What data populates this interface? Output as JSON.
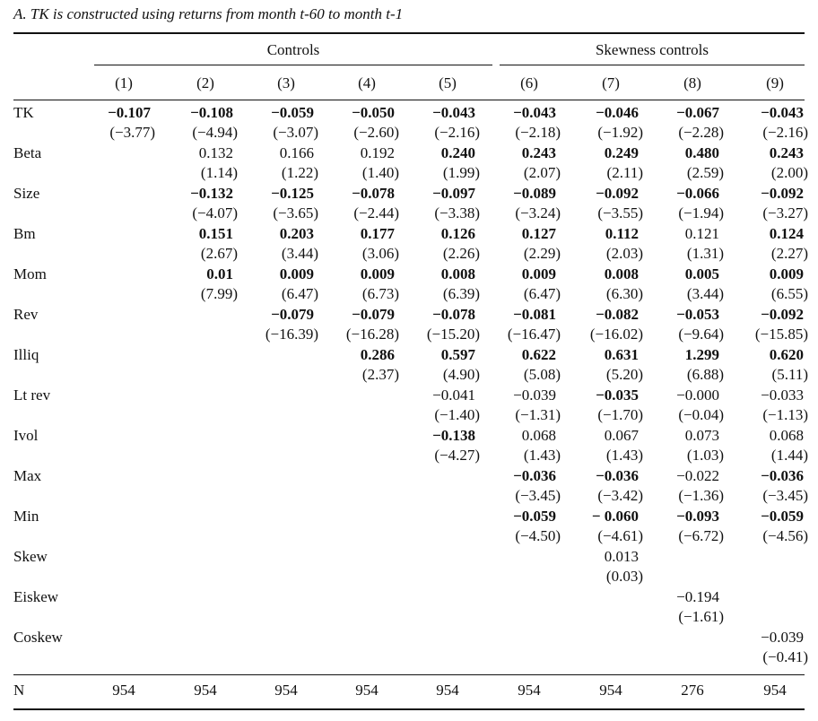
{
  "caption": "A. TK is constructed using returns from month t-60 to month t-1",
  "groups": {
    "controls": "Controls",
    "skewness": "Skewness controls"
  },
  "columns": [
    "(1)",
    "(2)",
    "(3)",
    "(4)",
    "(5)",
    "(6)",
    "(7)",
    "(8)",
    "(9)"
  ],
  "rows": [
    {
      "label": "TK",
      "coef": [
        "−0.107",
        "−0.108",
        "−0.059",
        "−0.050",
        "−0.043",
        "−0.043",
        "−0.046",
        "−0.067",
        "−0.043"
      ],
      "bold": [
        1,
        1,
        1,
        1,
        1,
        1,
        1,
        1,
        1
      ],
      "t": [
        "(−3.77)",
        "(−4.94)",
        "(−3.07)",
        "(−2.60)",
        "(−2.16)",
        "(−2.18)",
        "(−1.92)",
        "(−2.28)",
        "(−2.16)"
      ]
    },
    {
      "label": "Beta",
      "coef": [
        "",
        "0.132",
        "0.166",
        "0.192",
        "0.240",
        "0.243",
        "0.249",
        "0.480",
        "0.243"
      ],
      "bold": [
        0,
        0,
        0,
        0,
        1,
        1,
        1,
        1,
        1
      ],
      "t": [
        "",
        "(1.14)",
        "(1.22)",
        "(1.40)",
        "(1.99)",
        "(2.07)",
        "(2.11)",
        "(2.59)",
        "(2.00)"
      ]
    },
    {
      "label": "Size",
      "coef": [
        "",
        "−0.132",
        "−0.125",
        "−0.078",
        "−0.097",
        "−0.089",
        "−0.092",
        "−0.066",
        "−0.092"
      ],
      "bold": [
        0,
        1,
        1,
        1,
        1,
        1,
        1,
        1,
        1
      ],
      "t": [
        "",
        "(−4.07)",
        "(−3.65)",
        "(−2.44)",
        "(−3.38)",
        "(−3.24)",
        "(−3.55)",
        "(−1.94)",
        "(−3.27)"
      ]
    },
    {
      "label": "Bm",
      "coef": [
        "",
        "0.151",
        "0.203",
        "0.177",
        "0.126",
        "0.127",
        "0.112",
        "0.121",
        "0.124"
      ],
      "bold": [
        0,
        1,
        1,
        1,
        1,
        1,
        1,
        0,
        1
      ],
      "t": [
        "",
        "(2.67)",
        "(3.44)",
        "(3.06)",
        "(2.26)",
        "(2.29)",
        "(2.03)",
        "(1.31)",
        "(2.27)"
      ]
    },
    {
      "label": "Mom",
      "coef": [
        "",
        "0.01",
        "0.009",
        "0.009",
        "0.008",
        "0.009",
        "0.008",
        "0.005",
        "0.009"
      ],
      "bold": [
        0,
        1,
        1,
        1,
        1,
        1,
        1,
        1,
        1
      ],
      "t": [
        "",
        "(7.99)",
        "(6.47)",
        "(6.73)",
        "(6.39)",
        "(6.47)",
        "(6.30)",
        "(3.44)",
        "(6.55)"
      ]
    },
    {
      "label": "Rev",
      "coef": [
        "",
        "",
        "−0.079",
        "−0.079",
        "−0.078",
        "−0.081",
        "−0.082",
        "−0.053",
        "−0.092"
      ],
      "bold": [
        0,
        0,
        1,
        1,
        1,
        1,
        1,
        1,
        1
      ],
      "t": [
        "",
        "",
        "(−16.39)",
        "(−16.28)",
        "(−15.20)",
        "(−16.47)",
        "(−16.02)",
        "(−9.64)",
        "(−15.85)"
      ]
    },
    {
      "label": "Illiq",
      "coef": [
        "",
        "",
        "",
        "0.286",
        "0.597",
        "0.622",
        "0.631",
        "1.299",
        "0.620"
      ],
      "bold": [
        0,
        0,
        0,
        1,
        1,
        1,
        1,
        1,
        1
      ],
      "t": [
        "",
        "",
        "",
        "(2.37)",
        "(4.90)",
        "(5.08)",
        "(5.20)",
        "(6.88)",
        "(5.11)"
      ]
    },
    {
      "label": "Lt rev",
      "coef": [
        "",
        "",
        "",
        "",
        "−0.041",
        "−0.039",
        "−0.035",
        "−0.000",
        "−0.033"
      ],
      "bold": [
        0,
        0,
        0,
        0,
        0,
        0,
        1,
        0,
        0
      ],
      "t": [
        "",
        "",
        "",
        "",
        "(−1.40)",
        "(−1.31)",
        "(−1.70)",
        "(−0.04)",
        "(−1.13)"
      ]
    },
    {
      "label": "Ivol",
      "coef": [
        "",
        "",
        "",
        "",
        "−0.138",
        "0.068",
        "0.067",
        "0.073",
        "0.068"
      ],
      "bold": [
        0,
        0,
        0,
        0,
        1,
        0,
        0,
        0,
        0
      ],
      "t": [
        "",
        "",
        "",
        "",
        "(−4.27)",
        "(1.43)",
        "(1.43)",
        "(1.03)",
        "(1.44)"
      ]
    },
    {
      "label": "Max",
      "coef": [
        "",
        "",
        "",
        "",
        "",
        "−0.036",
        "−0.036",
        "−0.022",
        "−0.036"
      ],
      "bold": [
        0,
        0,
        0,
        0,
        0,
        1,
        1,
        0,
        1
      ],
      "t": [
        "",
        "",
        "",
        "",
        "",
        "(−3.45)",
        "(−3.42)",
        "(−1.36)",
        "(−3.45)"
      ]
    },
    {
      "label": "Min",
      "coef": [
        "",
        "",
        "",
        "",
        "",
        "−0.059",
        "− 0.060",
        "−0.093",
        "−0.059"
      ],
      "bold": [
        0,
        0,
        0,
        0,
        0,
        1,
        1,
        1,
        1
      ],
      "t": [
        "",
        "",
        "",
        "",
        "",
        "(−4.50)",
        "(−4.61)",
        "(−6.72)",
        "(−4.56)"
      ]
    },
    {
      "label": "Skew",
      "coef": [
        "",
        "",
        "",
        "",
        "",
        "",
        "0.013",
        "",
        ""
      ],
      "bold": [
        0,
        0,
        0,
        0,
        0,
        0,
        0,
        0,
        0
      ],
      "t": [
        "",
        "",
        "",
        "",
        "",
        "",
        "(0.03)",
        "",
        ""
      ]
    },
    {
      "label": "Eiskew",
      "coef": [
        "",
        "",
        "",
        "",
        "",
        "",
        "",
        "−0.194",
        ""
      ],
      "bold": [
        0,
        0,
        0,
        0,
        0,
        0,
        0,
        0,
        0
      ],
      "t": [
        "",
        "",
        "",
        "",
        "",
        "",
        "",
        "(−1.61)",
        ""
      ]
    },
    {
      "label": "Coskew",
      "coef": [
        "",
        "",
        "",
        "",
        "",
        "",
        "",
        "",
        "−0.039"
      ],
      "bold": [
        0,
        0,
        0,
        0,
        0,
        0,
        0,
        0,
        0
      ],
      "t": [
        "",
        "",
        "",
        "",
        "",
        "",
        "",
        "",
        "(−0.41)"
      ]
    }
  ],
  "n_row": {
    "label": "N",
    "values": [
      "954",
      "954",
      "954",
      "954",
      "954",
      "954",
      "954",
      "276",
      "954"
    ]
  }
}
